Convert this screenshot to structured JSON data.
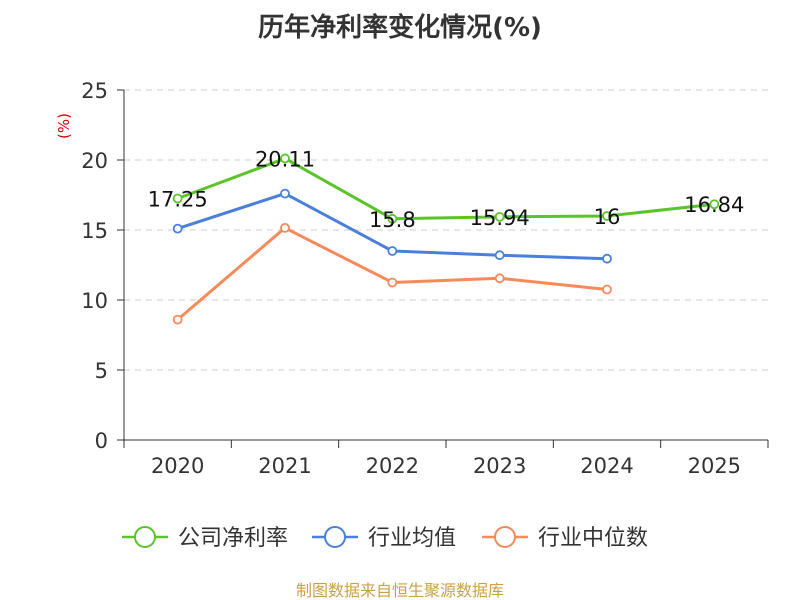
{
  "chart_data": {
    "type": "line",
    "title": "历年净利率变化情况(%)",
    "ylabel": "(%)",
    "xlabel": "",
    "categories": [
      "2020",
      "2021",
      "2022",
      "2023",
      "2024",
      "2025"
    ],
    "ylim": [
      0,
      25
    ],
    "yticks": [
      0,
      5,
      10,
      15,
      20,
      25
    ],
    "grid": true,
    "legend_position": "bottom",
    "series": [
      {
        "name": "公司净利率",
        "color": "#5bc42b",
        "values": [
          17.25,
          20.11,
          15.8,
          15.94,
          16,
          16.84
        ],
        "labels": [
          "17.25",
          "20.11",
          "15.8",
          "15.94",
          "16",
          "16.84"
        ]
      },
      {
        "name": "行业均值",
        "color": "#4a7fdc",
        "values": [
          15.1,
          17.6,
          13.5,
          13.2,
          12.95,
          null
        ]
      },
      {
        "name": "行业中位数",
        "color": "#f58a5a",
        "values": [
          8.6,
          15.15,
          11.25,
          11.55,
          10.75,
          null
        ]
      }
    ]
  },
  "source": "制图数据来自恒生聚源数据库"
}
